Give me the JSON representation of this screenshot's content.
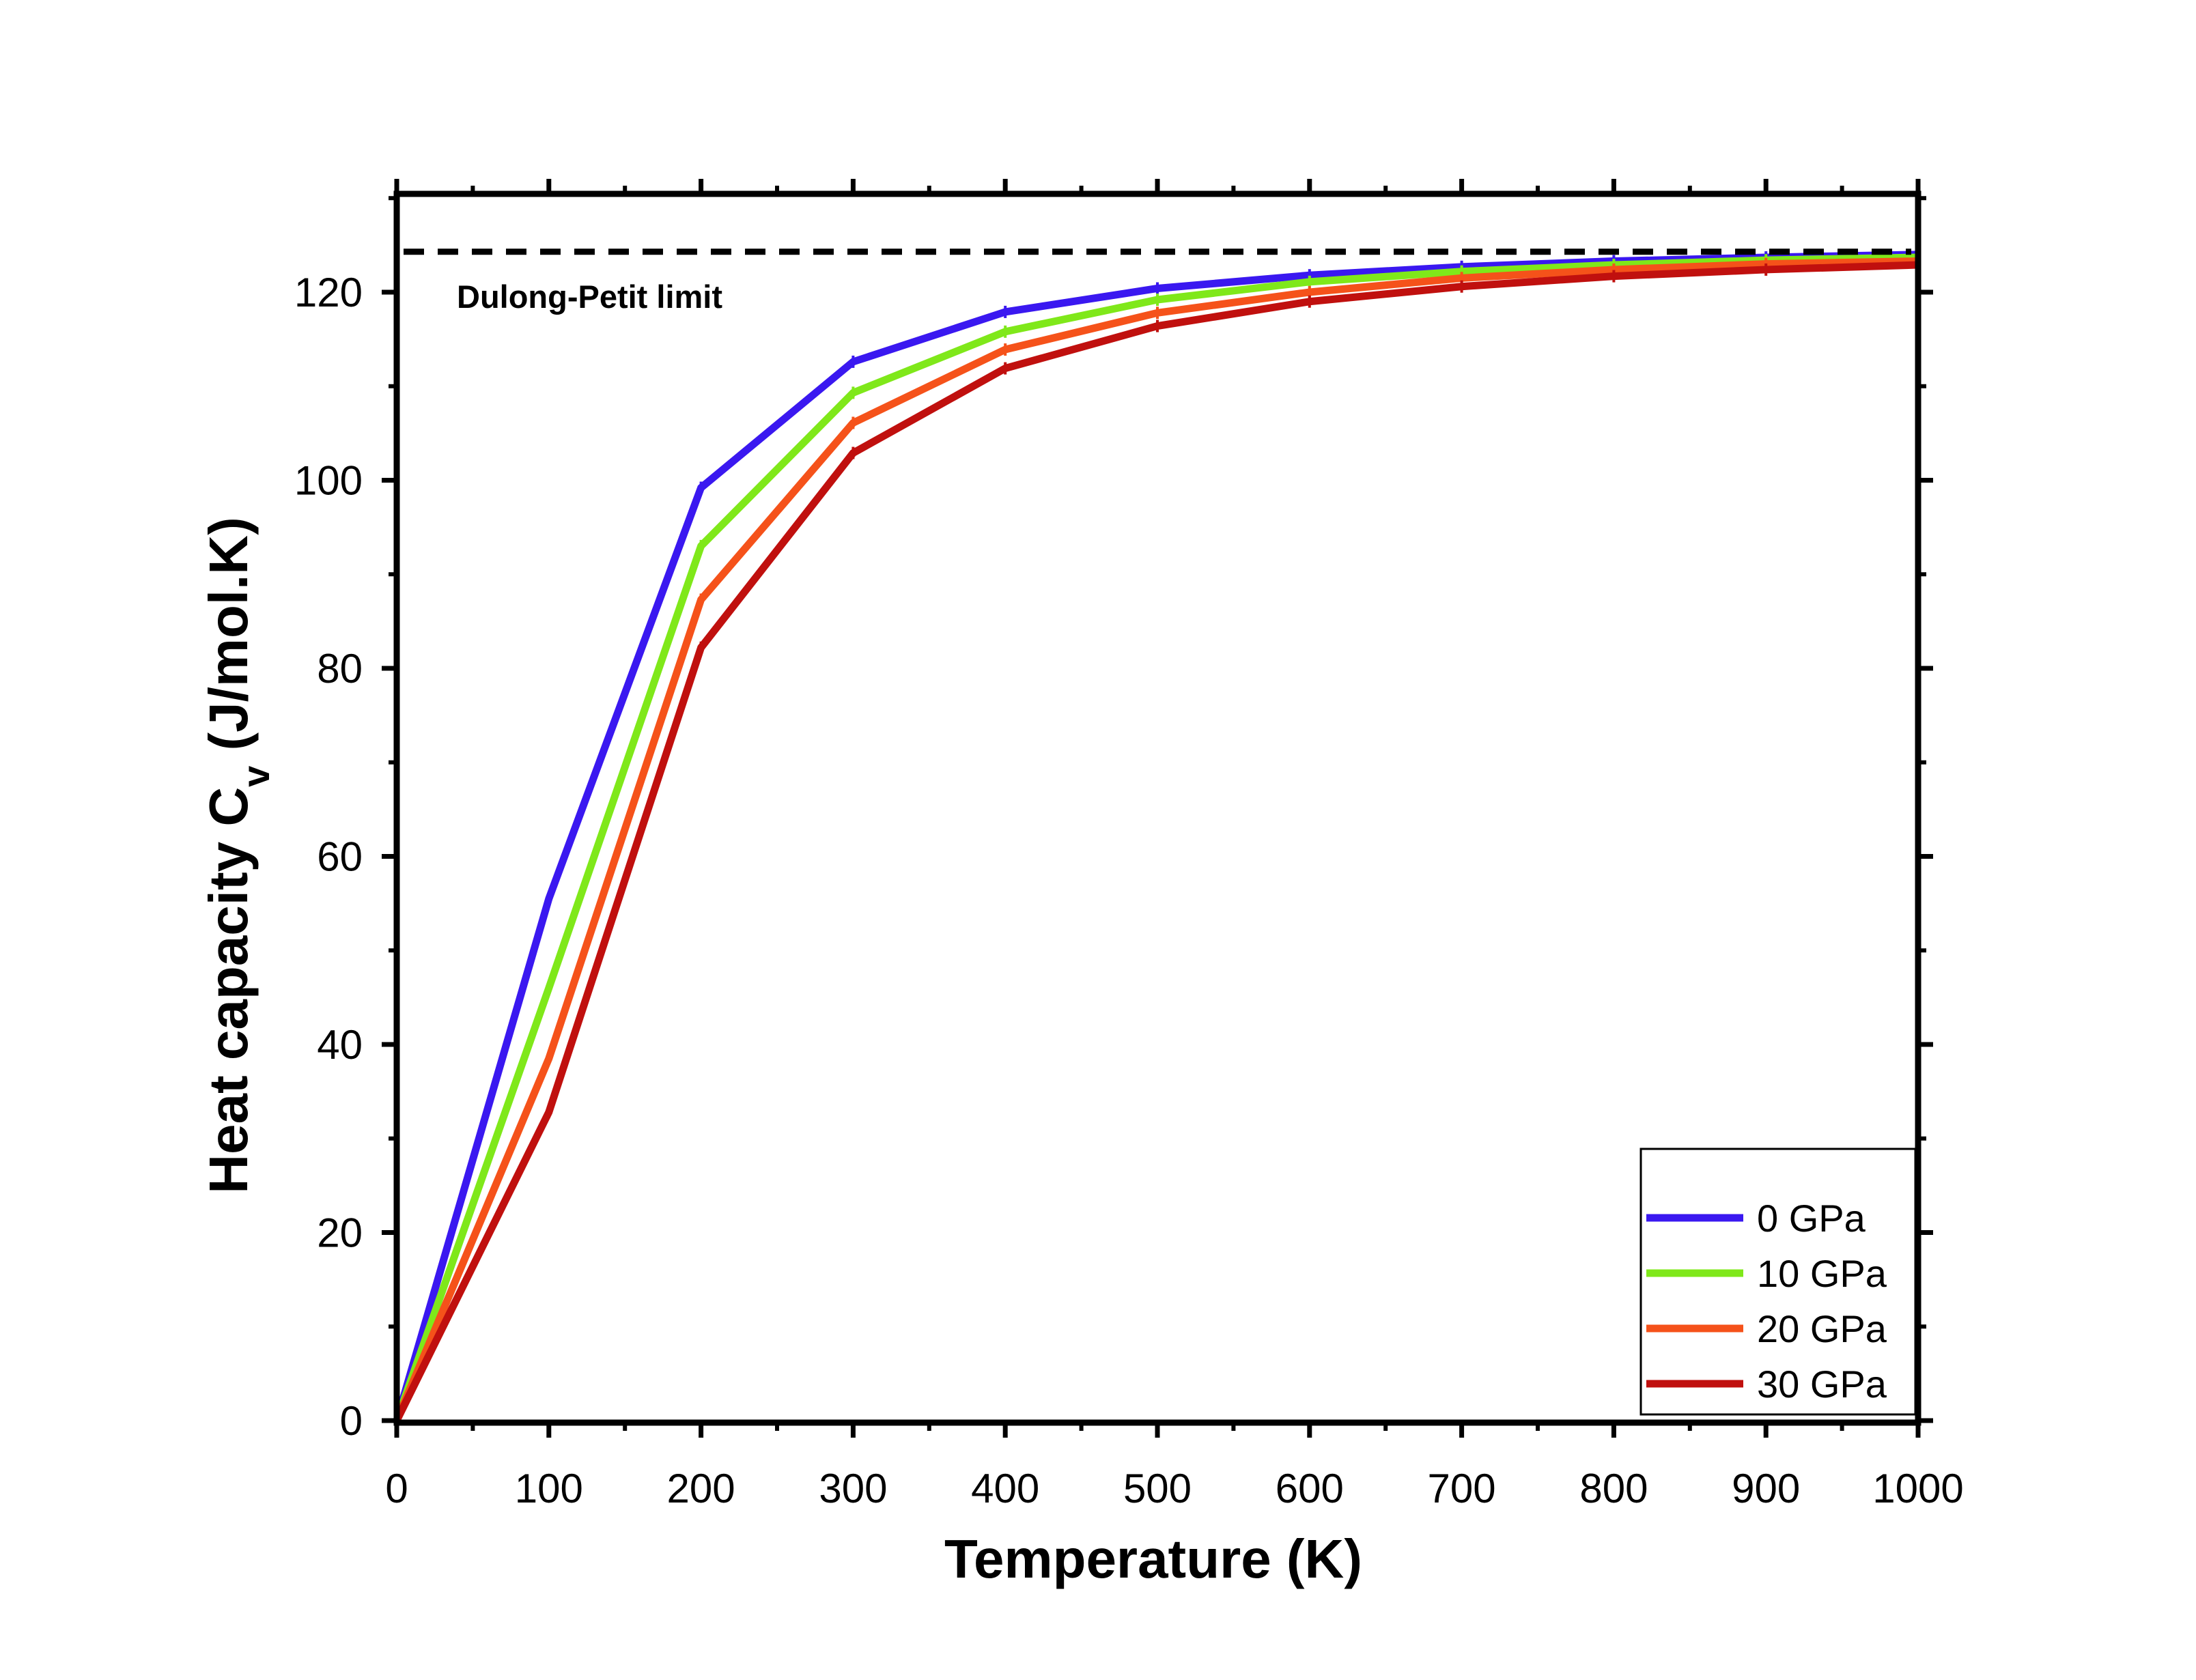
{
  "chart_data": {
    "type": "line",
    "title": "",
    "xlabel": "Temperature (K)",
    "ylabel": "Heat capacity C",
    "ylabel_subscript": "v",
    "ylabel_units": " (J/mol.K)",
    "xlim": [
      0,
      1000
    ],
    "ylim": [
      0,
      130
    ],
    "x_ticks": [
      0,
      100,
      200,
      300,
      400,
      500,
      600,
      700,
      800,
      900,
      1000
    ],
    "y_ticks": [
      0,
      20,
      40,
      60,
      80,
      100,
      120
    ],
    "x_tick_labels": [
      "0",
      "100",
      "200",
      "300",
      "400",
      "500",
      "600",
      "700",
      "800",
      "900",
      "1000"
    ],
    "y_tick_labels": [
      "0",
      "20",
      "40",
      "60",
      "80",
      "100",
      "120"
    ],
    "grid": false,
    "legend_position": "bottom-right",
    "x": [
      0,
      100,
      200,
      300,
      400,
      500,
      600,
      700,
      800,
      900,
      1000
    ],
    "series": [
      {
        "name": "0 GPa",
        "color": "#3a18f0",
        "values": [
          0,
          55.5,
          99.2,
          112.6,
          117.9,
          120.4,
          121.8,
          122.7,
          123.3,
          123.7,
          124.0
        ]
      },
      {
        "name": "10 GPa",
        "color": "#7fe81a",
        "values": [
          0,
          46.0,
          93.0,
          109.3,
          115.8,
          119.2,
          121.1,
          122.2,
          122.9,
          123.4,
          123.7
        ]
      },
      {
        "name": "20 GPa",
        "color": "#f5521a",
        "values": [
          0,
          38.5,
          87.3,
          106.1,
          113.9,
          117.8,
          120.0,
          121.5,
          122.4,
          123.0,
          123.3
        ]
      },
      {
        "name": "30 GPa",
        "color": "#c0100e",
        "values": [
          0,
          32.8,
          82.2,
          102.9,
          111.9,
          116.4,
          119.0,
          120.6,
          121.7,
          122.4,
          122.9
        ]
      }
    ],
    "reference_line": {
      "label": "Dulong-Petit limit",
      "value": 124.3
    }
  }
}
